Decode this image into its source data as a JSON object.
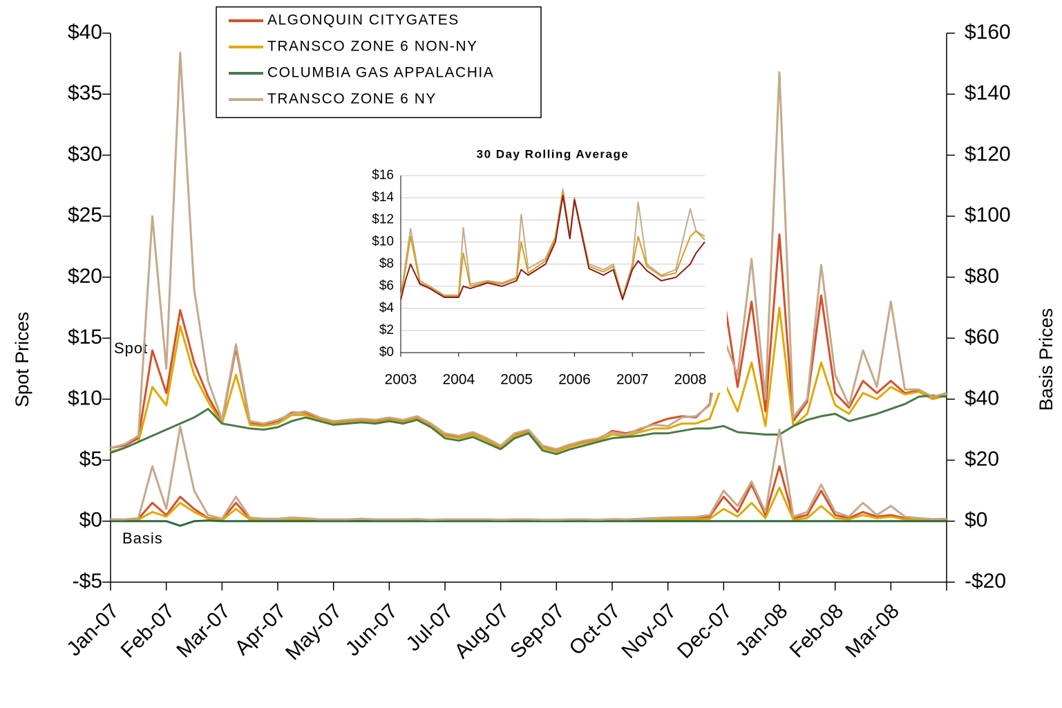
{
  "chart_data": [
    {
      "type": "line",
      "ylabel": "Spot Prices",
      "y2label": "Basis Prices",
      "annotations": [
        "Spot",
        "Basis"
      ],
      "legend": "top-left",
      "categories": [
        "Jan-07",
        null,
        null,
        null,
        "Feb-07",
        null,
        null,
        null,
        "Mar-07",
        null,
        null,
        null,
        "Apr-07",
        null,
        null,
        null,
        "May-07",
        null,
        null,
        null,
        "Jun-07",
        null,
        null,
        null,
        "Jul-07",
        null,
        null,
        null,
        "Aug-07",
        null,
        null,
        null,
        "Sep-07",
        null,
        null,
        null,
        "Oct-07",
        null,
        null,
        null,
        "Nov-07",
        null,
        null,
        null,
        "Dec-07",
        null,
        null,
        null,
        "Jan-08",
        null,
        null,
        null,
        "Feb-08",
        null,
        null,
        null,
        "Mar-08",
        null,
        null,
        null,
        null
      ],
      "ylim": [
        -5,
        40
      ],
      "yticks": [
        {
          "value": -5,
          "label": "-$5"
        },
        {
          "value": 0,
          "label": "$0"
        },
        {
          "value": 5,
          "label": "$5"
        },
        {
          "value": 10,
          "label": "$10"
        },
        {
          "value": 15,
          "label": "$15"
        },
        {
          "value": 20,
          "label": "$20"
        },
        {
          "value": 25,
          "label": "$25"
        },
        {
          "value": 30,
          "label": "$30"
        },
        {
          "value": 35,
          "label": "$35"
        },
        {
          "value": 40,
          "label": "$40"
        }
      ],
      "y2lim": [
        -20,
        160
      ],
      "y2ticks": [
        {
          "value": -20,
          "label": "-$20"
        },
        {
          "value": 0,
          "label": "$0"
        },
        {
          "value": 20,
          "label": "$20"
        },
        {
          "value": 40,
          "label": "$40"
        },
        {
          "value": 60,
          "label": "$60"
        },
        {
          "value": 80,
          "label": "$80"
        },
        {
          "value": 100,
          "label": "$100"
        },
        {
          "value": 120,
          "label": "$120"
        },
        {
          "value": 140,
          "label": "$140"
        },
        {
          "value": 160,
          "label": "$160"
        }
      ],
      "series": [
        {
          "name": "ALGONQUIN CITYGATES",
          "color": "#d4502a",
          "values": [
            6.0,
            6.2,
            6.8,
            14.0,
            10.5,
            17.3,
            13.0,
            10.2,
            8.2,
            14.2,
            8.1,
            7.9,
            8.2,
            8.9,
            8.9,
            8.4,
            8.1,
            8.2,
            8.3,
            8.2,
            8.4,
            8.2,
            8.5,
            7.9,
            7.1,
            6.9,
            7.2,
            6.7,
            6.1,
            7.1,
            7.4,
            6.1,
            5.8,
            6.2,
            6.5,
            6.7,
            7.4,
            7.2,
            7.5,
            8.0,
            8.4,
            8.6,
            8.5,
            9.6,
            18.5,
            11.0,
            18.0,
            9.0,
            23.5,
            8.2,
            9.8,
            18.5,
            10.5,
            9.3,
            11.5,
            10.5,
            11.5,
            10.5,
            10.7,
            10.1,
            10.3
          ]
        },
        {
          "name": "TRANSCO ZONE 6 NON-NY",
          "color": "#e0a800",
          "values": [
            5.7,
            6.0,
            6.5,
            11.0,
            9.5,
            16.0,
            12.0,
            9.8,
            8.0,
            12.0,
            7.9,
            7.8,
            8.0,
            8.7,
            8.7,
            8.3,
            8.0,
            8.1,
            8.2,
            8.1,
            8.3,
            8.1,
            8.4,
            7.8,
            7.0,
            6.8,
            7.1,
            6.6,
            6.0,
            7.0,
            7.3,
            6.0,
            5.7,
            6.1,
            6.4,
            6.6,
            7.1,
            7.0,
            7.3,
            7.6,
            7.6,
            8.0,
            8.0,
            8.4,
            11.5,
            9.0,
            13.0,
            7.8,
            17.5,
            7.8,
            8.8,
            13.0,
            9.5,
            8.8,
            10.5,
            10.0,
            11.0,
            10.4,
            10.6,
            10.0,
            10.3
          ]
        },
        {
          "name": "COLUMBIA GAS APPALACHIA",
          "color": "#4a7a4a",
          "values": [
            5.6,
            6.0,
            6.5,
            7.0,
            7.5,
            8.0,
            8.5,
            9.2,
            8.0,
            7.8,
            7.6,
            7.5,
            7.7,
            8.2,
            8.5,
            8.2,
            7.9,
            8.0,
            8.1,
            8.0,
            8.2,
            8.0,
            8.3,
            7.7,
            6.8,
            6.6,
            6.9,
            6.4,
            5.9,
            6.8,
            7.2,
            5.8,
            5.5,
            5.9,
            6.2,
            6.5,
            6.8,
            6.9,
            7.0,
            7.2,
            7.2,
            7.4,
            7.6,
            7.6,
            7.8,
            7.3,
            7.2,
            7.1,
            7.1,
            7.8,
            8.3,
            8.6,
            8.8,
            8.2,
            8.5,
            8.8,
            9.2,
            9.6,
            10.2,
            10.3,
            10.2
          ]
        },
        {
          "name": "TRANSCO ZONE 6 NY",
          "color": "#c4a98a",
          "values": [
            6.0,
            6.3,
            7.0,
            25.0,
            12.5,
            38.4,
            19.0,
            11.5,
            8.3,
            14.5,
            8.2,
            8.0,
            8.3,
            8.8,
            9.0,
            8.5,
            8.2,
            8.3,
            8.4,
            8.3,
            8.5,
            8.3,
            8.6,
            8.0,
            7.2,
            7.0,
            7.3,
            6.8,
            6.2,
            7.2,
            7.5,
            6.2,
            5.9,
            6.3,
            6.6,
            6.8,
            7.3,
            7.1,
            7.6,
            7.9,
            7.8,
            8.5,
            8.6,
            9.5,
            15.0,
            12.0,
            21.5,
            10.0,
            36.8,
            8.5,
            10.0,
            21.0,
            12.0,
            9.5,
            14.0,
            11.0,
            18.0,
            10.8,
            10.8,
            10.2,
            10.5
          ]
        },
        {
          "axis": "y2",
          "color": "#d4502a",
          "values": [
            0.5,
            0.5,
            0.8,
            6,
            2,
            8,
            4,
            1,
            0.5,
            6,
            0.8,
            0.5,
            0.6,
            0.9,
            0.8,
            0.5,
            0.5,
            0.5,
            0.6,
            0.5,
            0.5,
            0.5,
            0.5,
            0.4,
            0.5,
            0.5,
            0.5,
            0.5,
            0.4,
            0.5,
            0.5,
            0.4,
            0.4,
            0.5,
            0.5,
            0.4,
            0.6,
            0.5,
            0.6,
            0.8,
            0.9,
            1.0,
            1.0,
            1.5,
            8,
            3,
            12,
            2,
            18,
            1,
            2,
            10,
            2,
            1,
            3,
            1.5,
            2,
            1,
            0.8,
            0.5,
            0.6
          ]
        },
        {
          "axis": "y2",
          "color": "#e0a800",
          "values": [
            0.3,
            0.3,
            0.5,
            3,
            1.5,
            6,
            3,
            0.8,
            0.3,
            4,
            0.5,
            0.4,
            0.4,
            0.6,
            0.5,
            0.3,
            0.3,
            0.3,
            0.4,
            0.3,
            0.3,
            0.3,
            0.3,
            0.3,
            0.3,
            0.3,
            0.3,
            0.3,
            0.3,
            0.3,
            0.3,
            0.3,
            0.3,
            0.3,
            0.3,
            0.3,
            0.4,
            0.3,
            0.4,
            0.5,
            0.5,
            0.6,
            0.6,
            0.8,
            4,
            1.5,
            6,
            1,
            11,
            0.5,
            1,
            5,
            1,
            0.6,
            2,
            1,
            1.5,
            0.6,
            0.5,
            0.3,
            0.4
          ]
        },
        {
          "axis": "y2",
          "color": "#2e6b3a",
          "values": [
            0,
            0,
            0,
            0,
            0,
            -1.5,
            0,
            0.2,
            0,
            0,
            0,
            0,
            0,
            0,
            0,
            0,
            0,
            0,
            0,
            0,
            0,
            0,
            0,
            0,
            0,
            0,
            0,
            0,
            0,
            0,
            0,
            0,
            0,
            0,
            0,
            0,
            0,
            0,
            0,
            0,
            0,
            0,
            0,
            0,
            0,
            0,
            0,
            0,
            0,
            0,
            0,
            0,
            0,
            0,
            0,
            0,
            0,
            0,
            0,
            0,
            0
          ]
        },
        {
          "axis": "y2",
          "color": "#c4a98a",
          "values": [
            0.6,
            0.6,
            1,
            18,
            4,
            31,
            10,
            2,
            0.8,
            8,
            1.2,
            0.8,
            0.8,
            1.2,
            1.0,
            0.6,
            0.6,
            0.6,
            0.8,
            0.6,
            0.6,
            0.6,
            0.7,
            0.5,
            0.6,
            0.6,
            0.6,
            0.6,
            0.5,
            0.6,
            0.6,
            0.5,
            0.5,
            0.6,
            0.6,
            0.5,
            0.7,
            0.6,
            0.8,
            1,
            1.2,
            1.3,
            1.4,
            2,
            10,
            5,
            13,
            3,
            30,
            1.5,
            3,
            12,
            3,
            1.5,
            6,
            2,
            5,
            1.5,
            1,
            0.7,
            0.8
          ]
        }
      ]
    },
    {
      "type": "line",
      "title": "30 Day Rolling Average",
      "x": [
        2003,
        2003.08,
        2003.17,
        2003.33,
        2003.5,
        2003.75,
        2004,
        2004.08,
        2004.2,
        2004.5,
        2004.75,
        2005,
        2005.08,
        2005.2,
        2005.5,
        2005.67,
        2005.8,
        2005.92,
        2006,
        2006.25,
        2006.5,
        2006.67,
        2006.83,
        2007,
        2007.1,
        2007.25,
        2007.5,
        2007.75,
        2008,
        2008.1,
        2008.25
      ],
      "xlim": [
        2003,
        2008.25
      ],
      "xticks": [
        2003,
        2004,
        2005,
        2006,
        2007,
        2008
      ],
      "ylim": [
        0,
        16
      ],
      "yticks": [
        {
          "value": 0,
          "label": "$0"
        },
        {
          "value": 2,
          "label": "$2"
        },
        {
          "value": 4,
          "label": "$4"
        },
        {
          "value": 6,
          "label": "$6"
        },
        {
          "value": 8,
          "label": "$8"
        },
        {
          "value": 10,
          "label": "$10"
        },
        {
          "value": 12,
          "label": "$12"
        },
        {
          "value": 14,
          "label": "$14"
        },
        {
          "value": 16,
          "label": "$16"
        }
      ],
      "grid": true,
      "series": [
        {
          "color": "#c4a98a",
          "values": [
            5,
            8,
            11.2,
            6.5,
            6,
            5.2,
            5.2,
            11.3,
            6.2,
            6.5,
            6.3,
            6.8,
            12.5,
            7.6,
            8.5,
            10.5,
            14.8,
            10.5,
            14,
            8,
            7.5,
            8,
            5,
            8,
            13.6,
            8,
            7,
            7.5,
            13,
            11,
            10.5
          ]
        },
        {
          "color": "#d4a020",
          "values": [
            5,
            7.5,
            10.5,
            6.3,
            5.9,
            5.1,
            5.1,
            9,
            6,
            6.4,
            6.2,
            6.7,
            10,
            7.2,
            8.3,
            10.3,
            14.5,
            10.5,
            13.9,
            7.8,
            7.3,
            7.8,
            4.9,
            7.7,
            10.5,
            7.8,
            6.9,
            7.2,
            10.5,
            11,
            10.2
          ]
        },
        {
          "color": "#8b1a1a",
          "values": [
            4.8,
            6.5,
            8,
            6.2,
            5.8,
            5,
            5,
            6,
            5.8,
            6.3,
            6,
            6.5,
            7.5,
            7,
            8,
            10,
            14.2,
            10.3,
            13.8,
            7.6,
            7,
            7.5,
            4.8,
            7.5,
            8.3,
            7.4,
            6.5,
            6.8,
            8,
            9,
            10
          ]
        }
      ]
    }
  ]
}
